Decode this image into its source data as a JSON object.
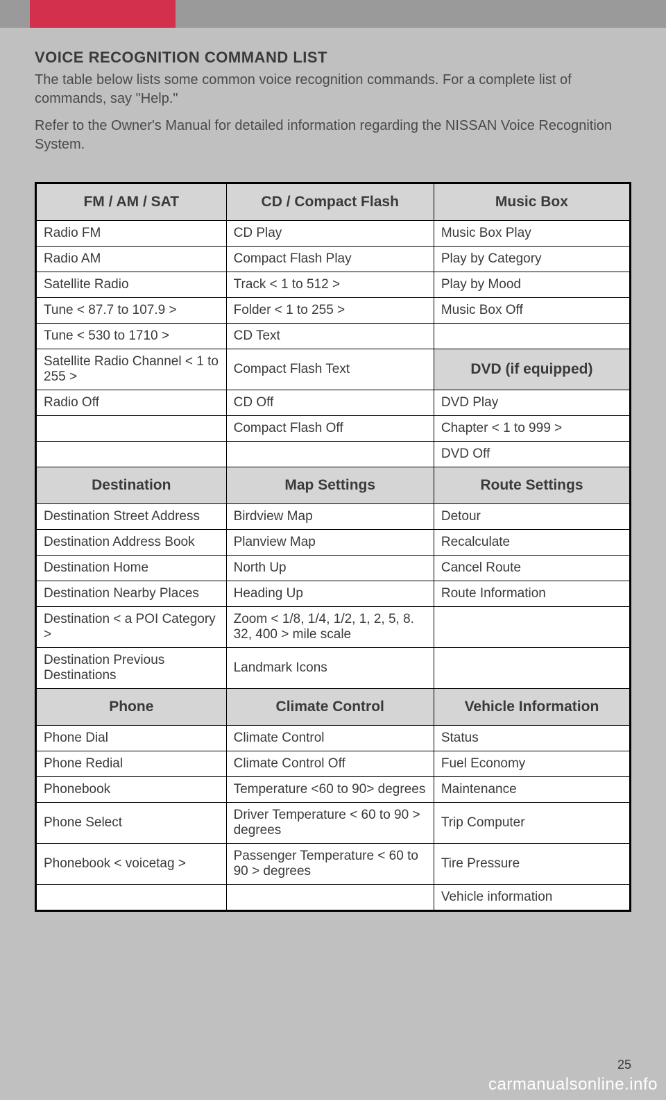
{
  "header": {
    "title": "VOICE RECOGNITION COMMAND LIST",
    "intro1": "The table below lists some common voice recognition commands. For a complete list of commands, say \"Help.\"",
    "intro2": "Refer to the Owner's Manual for detailed information regarding the NISSAN Voice Recognition System."
  },
  "table": {
    "headers1": [
      "FM / AM / SAT",
      "CD / Compact Flash",
      "Music Box"
    ],
    "section1_rows": [
      [
        "Radio FM",
        "CD Play",
        "Music Box Play"
      ],
      [
        "Radio AM",
        "Compact Flash Play",
        "Play by Category"
      ],
      [
        "Satellite Radio",
        "Track < 1 to 512 >",
        "Play by Mood"
      ],
      [
        "Tune < 87.7 to 107.9 >",
        "Folder < 1 to 255 >",
        "Music Box Off"
      ],
      [
        "Tune < 530 to 1710 >",
        "CD Text",
        ""
      ]
    ],
    "row_sat_channel": {
      "c1": "Satellite Radio Channel < 1 to 255 >",
      "c2": "Compact Flash Text",
      "c3_header": "DVD (if equipped)"
    },
    "section1b_rows": [
      [
        "Radio Off",
        "CD Off",
        "DVD Play"
      ],
      [
        "",
        "Compact Flash Off",
        "Chapter < 1 to 999 >"
      ],
      [
        "",
        "",
        "DVD Off"
      ]
    ],
    "headers2": [
      "Destination",
      "Map Settings",
      "Route Settings"
    ],
    "section2_rows": [
      [
        "Destination Street Address",
        "Birdview Map",
        "Detour"
      ],
      [
        "Destination Address Book",
        "Planview Map",
        "Recalculate"
      ],
      [
        "Destination Home",
        "North Up",
        "Cancel Route"
      ],
      [
        "Destination Nearby Places",
        "Heading Up",
        "Route Information"
      ],
      [
        "Destination < a POI Category >",
        "Zoom < 1/8, 1/4, 1/2, 1, 2, 5, 8. 32, 400 > mile scale",
        ""
      ],
      [
        "Destination Previous Destinations",
        "Landmark Icons",
        ""
      ]
    ],
    "headers3": [
      "Phone",
      "Climate Control",
      "Vehicle Information"
    ],
    "section3_rows": [
      [
        "Phone Dial",
        "Climate Control",
        "Status"
      ],
      [
        "Phone Redial",
        "Climate Control Off",
        "Fuel Economy"
      ],
      [
        "Phonebook",
        "Temperature <60 to 90> degrees",
        "Maintenance"
      ],
      [
        "Phone Select",
        "Driver Temperature < 60 to 90 > degrees",
        "Trip Computer"
      ],
      [
        "Phonebook < voicetag >",
        "Passenger Temperature < 60 to 90 > degrees",
        "Tire Pressure"
      ],
      [
        "",
        "",
        "Vehicle information"
      ]
    ]
  },
  "page_number": "25",
  "watermark": "carmanualsonline.info",
  "colors": {
    "page_bg": "#c0c0c0",
    "top_bar": "#9a9a9a",
    "red_tab": "#d3304e",
    "table_bg": "#ffffff",
    "header_bg": "#d5d5d5",
    "border": "#000000",
    "text": "#3a3a3a"
  }
}
